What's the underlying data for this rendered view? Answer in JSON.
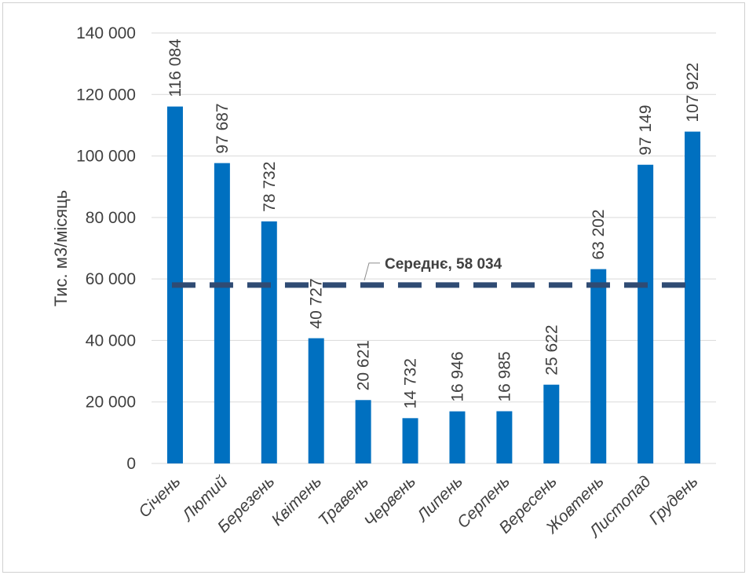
{
  "chart_data": {
    "type": "bar",
    "ylabel": "Тис. м3/місяць",
    "ylim": [
      0,
      140000
    ],
    "yticks": [
      0,
      20000,
      40000,
      60000,
      80000,
      100000,
      120000,
      140000
    ],
    "ytick_labels": [
      "0",
      "20 000",
      "40 000",
      "60 000",
      "80 000",
      "100 000",
      "120 000",
      "140 000"
    ],
    "categories": [
      "Січень",
      "Лютий",
      "Березень",
      "Квітень",
      "Травень",
      "Червень",
      "Липень",
      "Серпень",
      "Вересень",
      "Жовтень",
      "Листопад",
      "Грудень"
    ],
    "values": [
      116084,
      97687,
      78732,
      40727,
      20621,
      14732,
      16946,
      16985,
      25622,
      63202,
      97149,
      107922
    ],
    "value_labels": [
      "116 084",
      "97 687",
      "78 732",
      "40 727",
      "20 621",
      "14 732",
      "16 946",
      "16 985",
      "25 622",
      "63 202",
      "97 149",
      "107 922"
    ],
    "average": {
      "value": 58034,
      "label": "Середнє,  58 034",
      "style": "dashed"
    },
    "grid": true,
    "colors": {
      "bar": "#0070C0",
      "average_line": "#2F4B73",
      "grid": "#D9D9D9"
    }
  }
}
